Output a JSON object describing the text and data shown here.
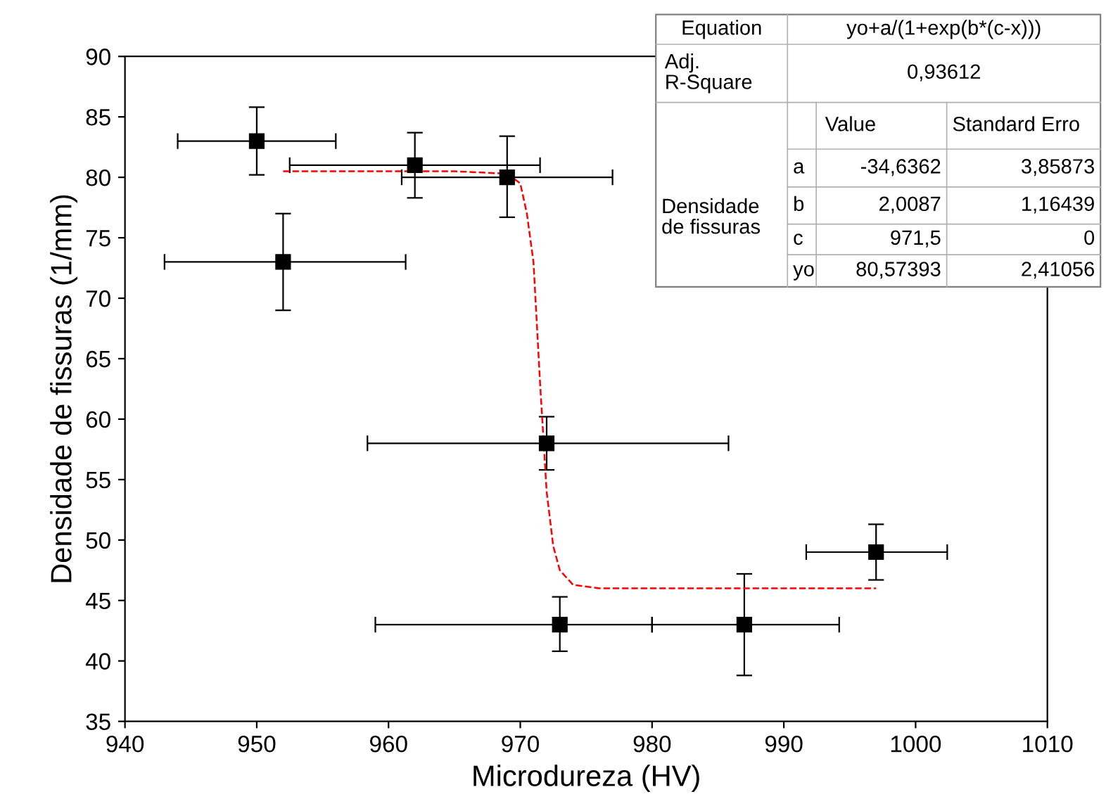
{
  "chart_data": {
    "type": "scatter",
    "xlabel": "Microdureza (HV)",
    "ylabel": "Densidade de fissuras (1/mm)",
    "xlim": [
      940,
      1010
    ],
    "xticks": [
      940,
      950,
      960,
      970,
      980,
      990,
      1000,
      1010
    ],
    "ylim": [
      35,
      90
    ],
    "yticks": [
      35,
      40,
      45,
      50,
      55,
      60,
      65,
      70,
      75,
      80,
      85,
      90
    ],
    "grid": false,
    "marker": "square",
    "series": [
      {
        "color": "#000000",
        "x": [
          950,
          952,
          962,
          969,
          972,
          973,
          987,
          997
        ],
        "values": [
          83,
          73,
          81,
          80,
          58,
          43,
          43,
          49
        ],
        "errors": [
          [
            80.2,
            85.8
          ],
          [
            69,
            77
          ],
          [
            78.3,
            83.7
          ],
          [
            76.7,
            83.4
          ],
          [
            55.8,
            60.2
          ],
          [
            40.8,
            45.3
          ],
          [
            38.8,
            47.2
          ],
          [
            46.7,
            51.3
          ]
        ],
        "xerrors": [
          [
            944,
            956
          ],
          [
            943,
            961.3
          ],
          [
            952.5,
            971.5
          ],
          [
            961,
            977
          ],
          [
            958.4,
            985.8
          ],
          [
            959,
            980
          ],
          [
            980,
            994.2
          ],
          [
            991.7,
            1002.4
          ]
        ]
      },
      {
        "type": "line",
        "color": "#ff0000",
        "line_style": "dashed",
        "marker": "none",
        "x": [
          952,
          965,
          969,
          970,
          970.5,
          971,
          971.5,
          972,
          972.5,
          973,
          974,
          976,
          997
        ],
        "values": [
          80.5,
          80.5,
          80.3,
          79.5,
          77,
          73,
          63,
          54,
          49.5,
          47.5,
          46.3,
          46,
          46
        ]
      }
    ],
    "annotations": [
      "Equation",
      "yo+a/(1+exp(b*(c-x)))",
      "Adj.\nR-Square",
      "0,93612",
      "Value",
      "Standard Erro",
      "Densidade\nde fissuras",
      "a",
      "-34,6362",
      "3,85873",
      "b",
      "2,0087",
      "1,16439",
      "c",
      "971,5",
      "0",
      "yo",
      "80,57393",
      "2,41056"
    ]
  }
}
